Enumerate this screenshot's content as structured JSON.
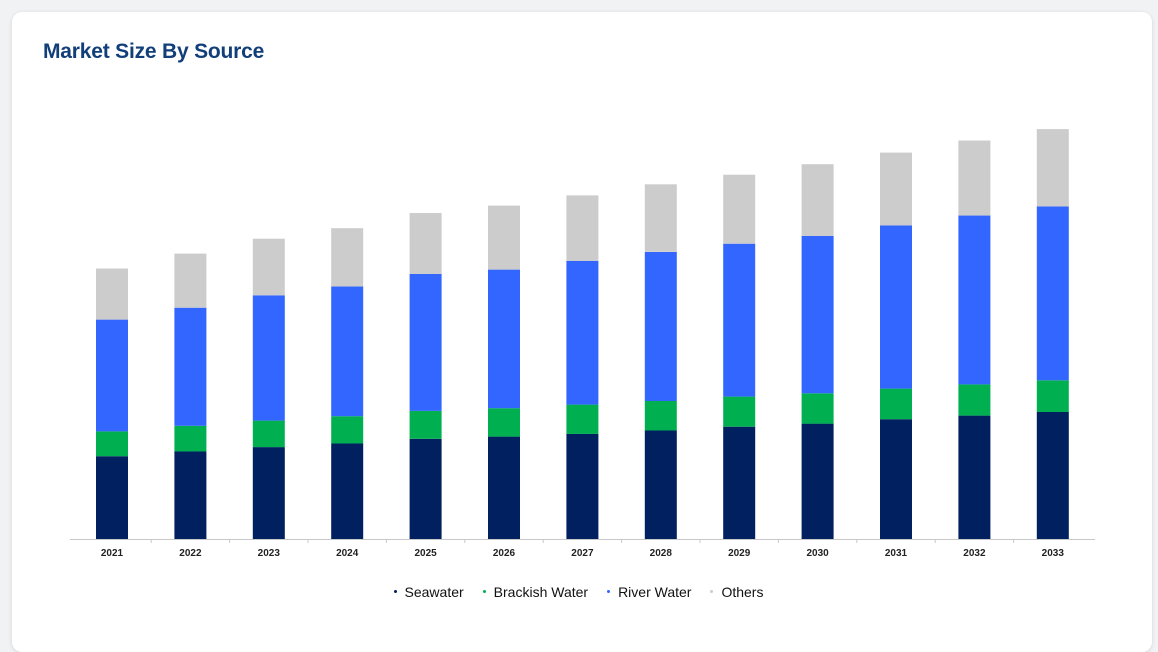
{
  "title": "Market Size By Source",
  "chart_data": {
    "type": "bar",
    "stacked": true,
    "categories": [
      "2021",
      "2022",
      "2023",
      "2024",
      "2025",
      "2026",
      "2027",
      "2028",
      "2029",
      "2030",
      "2031",
      "2032",
      "2033"
    ],
    "series": [
      {
        "name": "Seawater",
        "color": "#00205f",
        "values": [
          30.0,
          31.7,
          33.3,
          34.6,
          36.3,
          37.1,
          38.1,
          39.3,
          40.7,
          41.8,
          43.4,
          44.7,
          46.0
        ]
      },
      {
        "name": "Brackish Water",
        "color": "#00b050",
        "values": [
          9.0,
          9.3,
          9.6,
          9.9,
          10.1,
          10.3,
          10.6,
          10.7,
          10.9,
          11.0,
          11.1,
          11.3,
          11.5
        ]
      },
      {
        "name": "River Water",
        "color": "#3366ff",
        "values": [
          40.5,
          42.8,
          45.4,
          47.0,
          49.6,
          50.2,
          52.1,
          54.0,
          55.4,
          57.0,
          59.1,
          61.2,
          63.0
        ]
      },
      {
        "name": "Others",
        "color": "#cccccc",
        "values": [
          18.5,
          19.6,
          20.5,
          21.1,
          22.1,
          23.2,
          23.7,
          24.5,
          25.0,
          26.0,
          26.4,
          27.2,
          28.0
        ]
      }
    ],
    "ylim": [
      0,
      160
    ],
    "legend_position": "bottom",
    "grid": false
  }
}
